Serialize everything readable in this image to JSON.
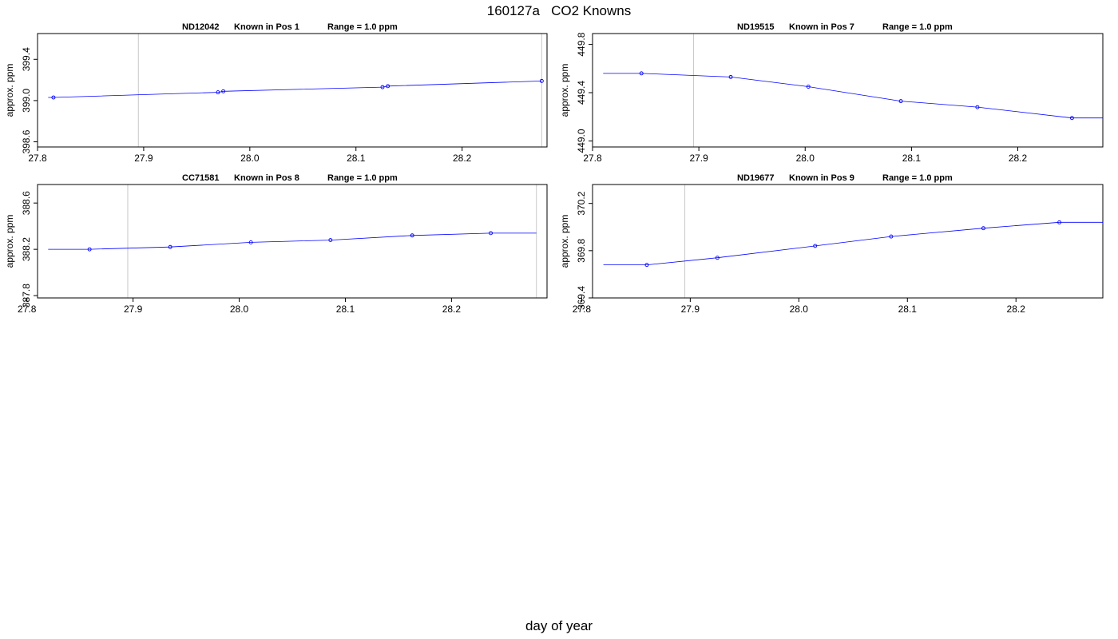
{
  "title": "160127a   CO2 Knowns",
  "xlabel": "day of year",
  "colors": {
    "series": "#0000ff",
    "vline": "#c8c8c8",
    "axis": "#000000"
  },
  "chart_data": [
    {
      "type": "line",
      "title_parts": [
        "ND12042",
        "Known in Pos 1",
        "Range = 1.0 ppm"
      ],
      "ylabel": "approx. ppm",
      "xlim": [
        27.8,
        28.28
      ],
      "ylim": [
        398.55,
        399.65
      ],
      "xticks": [
        "27.8",
        "27.9",
        "28.0",
        "28.1",
        "28.2"
      ],
      "yticks": [
        "398.6",
        "399.0",
        "399.4"
      ],
      "vlines": [
        27.895,
        28.275
      ],
      "line_start": 27.81,
      "line_end": 28.275,
      "points": [
        [
          27.815,
          399.03
        ],
        [
          27.97,
          399.08
        ],
        [
          27.975,
          399.09
        ],
        [
          28.125,
          399.13
        ],
        [
          28.13,
          399.14
        ],
        [
          28.275,
          399.19
        ]
      ]
    },
    {
      "type": "line",
      "title_parts": [
        "ND19515",
        "Known in Pos 7",
        "Range = 1.0 ppm"
      ],
      "ylabel": "approx. ppm",
      "xlim": [
        27.8,
        28.28
      ],
      "ylim": [
        448.95,
        449.89
      ],
      "xticks": [
        "27.8",
        "27.9",
        "28.0",
        "28.1",
        "28.2"
      ],
      "yticks": [
        "449.0",
        "449.4",
        "449.8"
      ],
      "vlines": [
        27.895,
        28.28
      ],
      "line_start": 27.81,
      "line_end": 28.28,
      "points": [
        [
          27.846,
          449.56
        ],
        [
          27.93,
          449.53
        ],
        [
          28.003,
          449.45
        ],
        [
          28.09,
          449.33
        ],
        [
          28.162,
          449.28
        ],
        [
          28.251,
          449.19
        ]
      ]
    },
    {
      "type": "line",
      "title_parts": [
        "CC71581",
        "Known in Pos 8",
        "Range = 1.0 ppm"
      ],
      "ylabel": "approx. ppm",
      "xlim": [
        27.81,
        28.29
      ],
      "ylim": [
        387.78,
        388.76
      ],
      "xticks": [
        "27.8",
        "27.9",
        "28.0",
        "28.1",
        "28.2"
      ],
      "yticks": [
        "387.8",
        "388.2",
        "388.6"
      ],
      "vlines": [
        27.895,
        28.28
      ],
      "line_start": 27.82,
      "line_end": 28.28,
      "points": [
        [
          27.859,
          388.2
        ],
        [
          27.935,
          388.22
        ],
        [
          28.011,
          388.26
        ],
        [
          28.086,
          388.28
        ],
        [
          28.163,
          388.32
        ],
        [
          28.237,
          388.34
        ]
      ]
    },
    {
      "type": "line",
      "title_parts": [
        "ND19677",
        "Known in Pos 9",
        "Range = 1.0 ppm"
      ],
      "ylabel": "approx. ppm",
      "xlim": [
        27.81,
        28.28
      ],
      "ylim": [
        369.4,
        370.36
      ],
      "xticks": [
        "27.8",
        "27.9",
        "28.0",
        "28.1",
        "28.2"
      ],
      "yticks": [
        "369.4",
        "369.8",
        "370.2"
      ],
      "vlines": [
        27.895,
        28.28
      ],
      "line_start": 27.82,
      "line_end": 28.28,
      "points": [
        [
          27.86,
          369.68
        ],
        [
          27.925,
          369.74
        ],
        [
          28.015,
          369.84
        ],
        [
          28.085,
          369.92
        ],
        [
          28.17,
          369.99
        ],
        [
          28.24,
          370.04
        ]
      ]
    }
  ]
}
